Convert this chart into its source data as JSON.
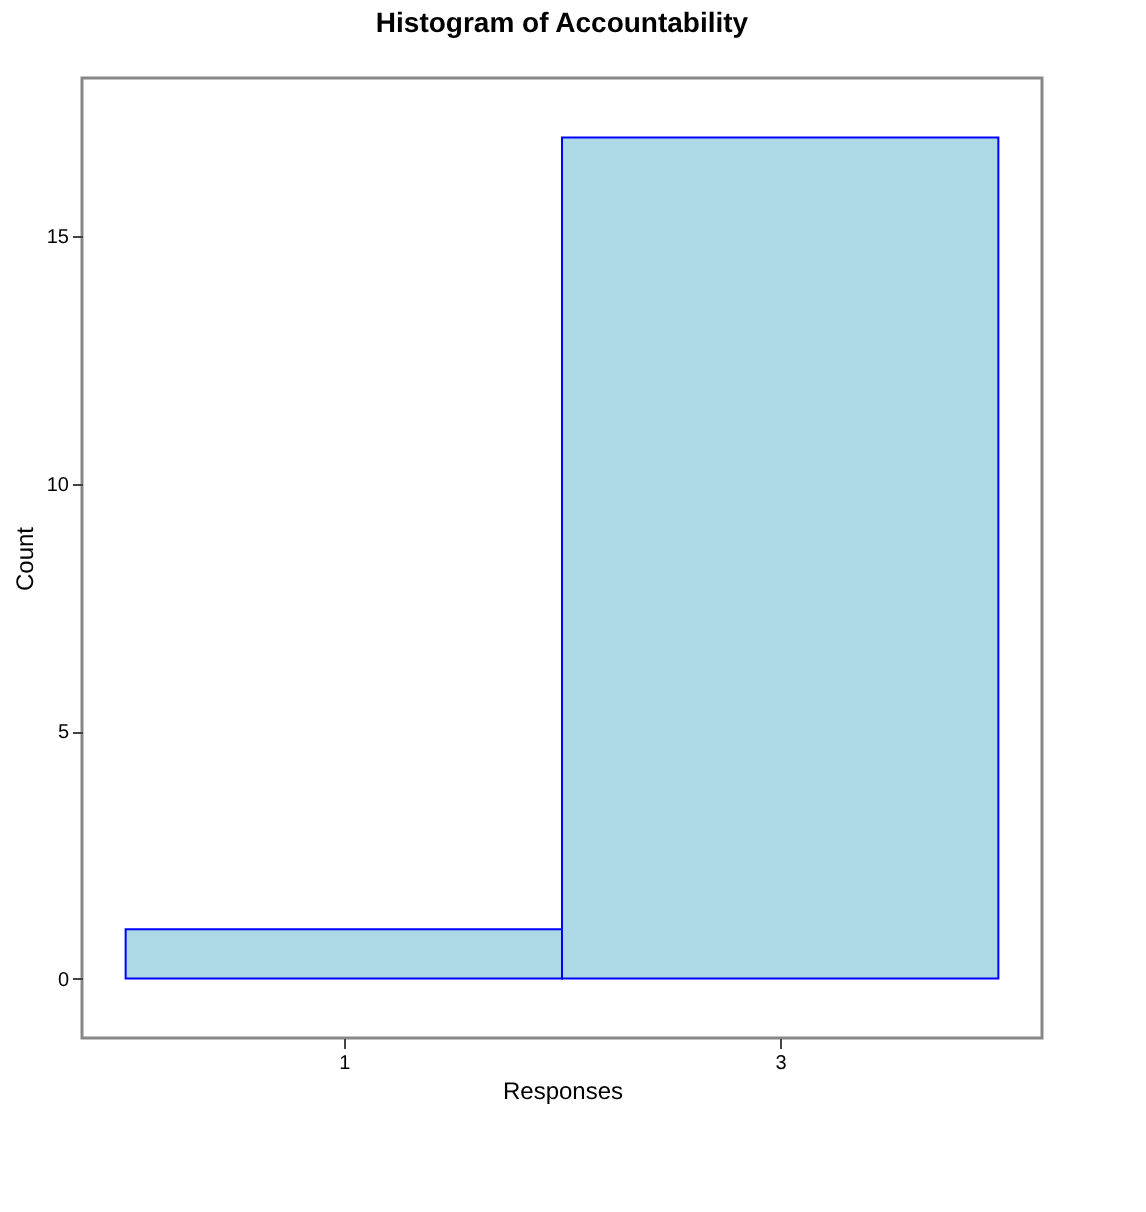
{
  "chart_data": {
    "type": "histogram",
    "title": "Histogram of Accountability",
    "xlabel": "Responses",
    "ylabel": "Count",
    "bins": [
      0,
      2,
      4
    ],
    "values": [
      1,
      17
    ],
    "color": "#add8e6",
    "xlim": [
      -0.2,
      4.2
    ],
    "xticks": [
      1,
      3
    ],
    "ylim": [
      -1.2,
      18.2
    ],
    "yticks": [
      0,
      5,
      10,
      15
    ],
    "grid": false
  }
}
